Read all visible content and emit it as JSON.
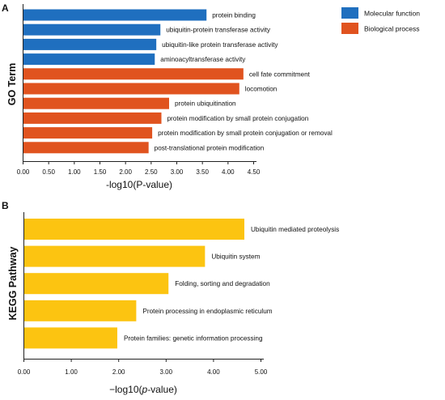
{
  "chart_data": [
    {
      "type": "bar",
      "orientation": "horizontal",
      "panel": "A",
      "ylabel": "GO Term",
      "xlabel": "-log10(P-value)",
      "xlim": [
        0,
        4.5
      ],
      "xticks": [
        "0.00",
        "0.50",
        "1.00",
        "1.50",
        "2.00",
        "2.50",
        "3.00",
        "3.50",
        "4.00",
        "4.50"
      ],
      "grid": false,
      "legend_position": "top-right",
      "legend": [
        {
          "name": "Molecular function",
          "color": "#1f6fbf"
        },
        {
          "name": "Biological process",
          "color": "#e0531f"
        }
      ],
      "categories": [
        "protein binding",
        "ubiquitin-protein transferase activity",
        "ubiquitin-like protein transferase activity",
        "aminoacyltransferase activity",
        "cell fate commitment",
        "locomotion",
        "protein ubiquitination",
        "protein modification by small protein conjugation",
        "protein modification by small protein conjugation or removal",
        "post-translational protein modification"
      ],
      "values": [
        3.58,
        2.68,
        2.6,
        2.57,
        4.3,
        4.22,
        2.85,
        2.7,
        2.52,
        2.45
      ],
      "groups": [
        0,
        0,
        0,
        0,
        1,
        1,
        1,
        1,
        1,
        1
      ]
    },
    {
      "type": "bar",
      "orientation": "horizontal",
      "panel": "B",
      "ylabel": "KEGG Pathway",
      "xlabel": "−log10(",
      "xlabel_italic": "p",
      "xlabel_end": "-value)",
      "xlim": [
        0,
        5
      ],
      "xticks": [
        "0.00",
        "1.00",
        "2.00",
        "3.00",
        "4.00",
        "5.00"
      ],
      "grid": false,
      "color": "#fcc411",
      "categories": [
        "Ubiquitin mediated proteolysis",
        "Ubiquitin system",
        "Folding, sorting and degradation",
        "Protein processing in endoplasmic reticulum",
        "Protein families: genetic information processing"
      ],
      "values": [
        4.65,
        3.82,
        3.05,
        2.37,
        1.97
      ]
    }
  ]
}
